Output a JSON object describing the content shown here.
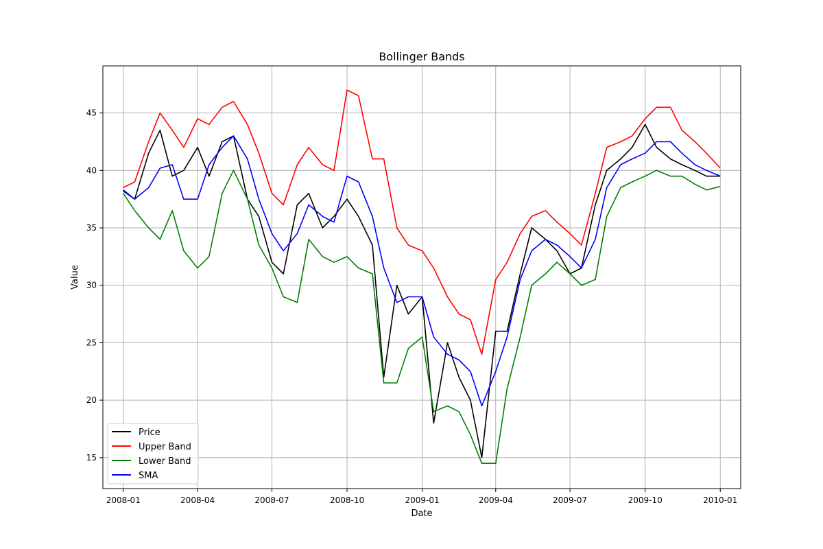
{
  "chart_data": {
    "type": "line",
    "title": "Bollinger Bands",
    "xlabel": "Date",
    "ylabel": "Value",
    "x_ticks": [
      "2008-01",
      "2008-04",
      "2008-07",
      "2008-10",
      "2009-01",
      "2009-04",
      "2009-07",
      "2009-10",
      "2010-01"
    ],
    "y_ticks": [
      "15",
      "20",
      "25",
      "30",
      "35",
      "40",
      "45"
    ],
    "xlim": [
      "2007-12-07",
      "2010-01-26"
    ],
    "ylim": [
      12.3,
      49.1
    ],
    "grid": true,
    "legend_position": "lower-left",
    "x": [
      "2008-01-01",
      "2008-01-15",
      "2008-02-01",
      "2008-02-15",
      "2008-03-01",
      "2008-03-15",
      "2008-04-01",
      "2008-04-15",
      "2008-05-01",
      "2008-05-15",
      "2008-06-01",
      "2008-06-15",
      "2008-07-01",
      "2008-07-15",
      "2008-08-01",
      "2008-08-15",
      "2008-09-01",
      "2008-09-15",
      "2008-10-01",
      "2008-10-15",
      "2008-11-01",
      "2008-11-15",
      "2008-12-01",
      "2008-12-15",
      "2009-01-01",
      "2009-01-15",
      "2009-02-01",
      "2009-02-15",
      "2009-03-01",
      "2009-03-15",
      "2009-04-01",
      "2009-04-15",
      "2009-05-01",
      "2009-05-15",
      "2009-06-01",
      "2009-06-15",
      "2009-07-01",
      "2009-07-15",
      "2009-08-01",
      "2009-08-15",
      "2009-09-01",
      "2009-09-15",
      "2009-10-01",
      "2009-10-15",
      "2009-11-01",
      "2009-11-15",
      "2009-12-01",
      "2009-12-15",
      "2010-01-01"
    ],
    "series": [
      {
        "name": "Price",
        "color": "#000000",
        "values": [
          38.2,
          37.5,
          41.5,
          43.5,
          39.5,
          40.0,
          42.0,
          39.5,
          42.5,
          43.0,
          37.5,
          36.0,
          32.0,
          31.0,
          37.0,
          38.0,
          35.0,
          36.0,
          37.5,
          36.0,
          33.5,
          22.0,
          30.0,
          27.5,
          29.0,
          18.0,
          25.0,
          22.0,
          20.0,
          15.0,
          26.0,
          26.0,
          31.0,
          35.0,
          34.0,
          33.0,
          31.0,
          31.5,
          37.0,
          40.0,
          41.0,
          42.0,
          44.0,
          42.0,
          41.0,
          40.5,
          40.0,
          39.5,
          39.5
        ]
      },
      {
        "name": "Upper Band",
        "color": "#ff0000",
        "values": [
          38.5,
          39.0,
          42.5,
          45.0,
          43.5,
          42.0,
          44.5,
          44.0,
          45.5,
          46.0,
          44.0,
          41.5,
          38.0,
          37.0,
          40.5,
          42.0,
          40.5,
          40.0,
          47.0,
          46.5,
          41.0,
          41.0,
          35.0,
          33.5,
          33.0,
          31.5,
          29.0,
          27.5,
          27.0,
          24.0,
          30.5,
          32.0,
          34.5,
          36.0,
          36.5,
          35.5,
          34.5,
          33.5,
          38.0,
          42.0,
          42.5,
          43.0,
          44.5,
          45.5,
          45.5,
          43.5,
          42.5,
          41.5,
          40.2
        ]
      },
      {
        "name": "Lower Band",
        "color": "#008000",
        "values": [
          38.0,
          36.5,
          35.0,
          34.0,
          36.5,
          33.0,
          31.5,
          32.5,
          38.0,
          40.0,
          37.5,
          33.5,
          31.5,
          29.0,
          28.5,
          34.0,
          32.5,
          32.0,
          32.5,
          31.5,
          31.0,
          21.5,
          21.5,
          24.5,
          25.5,
          19.0,
          19.5,
          19.0,
          17.0,
          14.5,
          14.5,
          21.0,
          25.5,
          30.0,
          31.0,
          32.0,
          31.0,
          30.0,
          30.5,
          36.0,
          38.5,
          39.0,
          39.5,
          40.0,
          39.5,
          39.5,
          38.8,
          38.3,
          38.6
        ]
      },
      {
        "name": "SMA",
        "color": "#0000ff",
        "values": [
          38.3,
          37.5,
          38.5,
          40.2,
          40.5,
          37.5,
          37.5,
          40.5,
          42.0,
          43.0,
          41.0,
          37.5,
          34.5,
          33.0,
          34.5,
          37.0,
          36.0,
          35.5,
          39.5,
          39.0,
          36.0,
          31.5,
          28.5,
          29.0,
          29.0,
          25.5,
          24.0,
          23.5,
          22.5,
          19.5,
          22.5,
          25.5,
          30.5,
          33.0,
          34.0,
          33.5,
          32.5,
          31.5,
          34.0,
          38.5,
          40.5,
          41.0,
          41.5,
          42.5,
          42.5,
          41.5,
          40.5,
          40.0,
          39.5
        ]
      }
    ]
  }
}
